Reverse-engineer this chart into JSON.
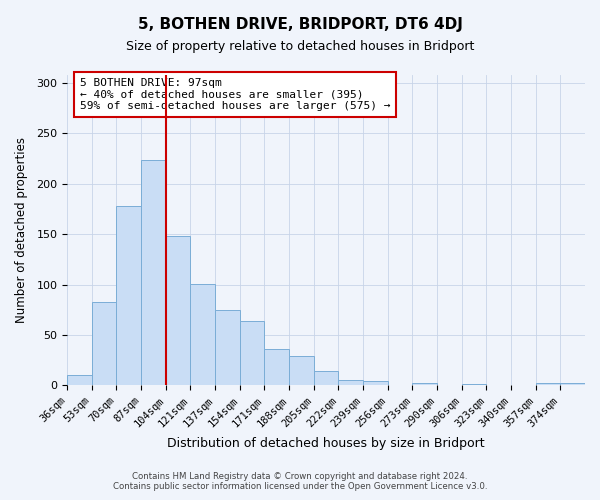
{
  "title": "5, BOTHEN DRIVE, BRIDPORT, DT6 4DJ",
  "subtitle": "Size of property relative to detached houses in Bridport",
  "xlabel": "Distribution of detached houses by size in Bridport",
  "ylabel": "Number of detached properties",
  "bar_labels": [
    "36sqm",
    "53sqm",
    "70sqm",
    "87sqm",
    "104sqm",
    "121sqm",
    "137sqm",
    "154sqm",
    "171sqm",
    "188sqm",
    "205sqm",
    "222sqm",
    "239sqm",
    "256sqm",
    "273sqm",
    "290sqm",
    "306sqm",
    "323sqm",
    "340sqm",
    "357sqm",
    "374sqm"
  ],
  "bar_values": [
    10,
    83,
    178,
    224,
    148,
    101,
    75,
    64,
    36,
    29,
    14,
    5,
    4,
    0,
    2,
    0,
    1,
    0,
    0,
    2,
    2
  ],
  "bar_color": "#c9ddf5",
  "bar_edge_color": "#7aadd6",
  "vline_x": 4.0,
  "vline_color": "#cc0000",
  "annotation_title": "5 BOTHEN DRIVE: 97sqm",
  "annotation_line1": "← 40% of detached houses are smaller (395)",
  "annotation_line2": "59% of semi-detached houses are larger (575) →",
  "annotation_box_edge_color": "#cc0000",
  "ylim": [
    0,
    308
  ],
  "yticks": [
    0,
    50,
    100,
    150,
    200,
    250,
    300
  ],
  "footer1": "Contains HM Land Registry data © Crown copyright and database right 2024.",
  "footer2": "Contains public sector information licensed under the Open Government Licence v3.0.",
  "bg_color": "#f0f4fb",
  "plot_bg_color": "#f0f4fb",
  "title_fontsize": 11,
  "subtitle_fontsize": 9,
  "xlabel_fontsize": 9,
  "ylabel_fontsize": 8.5,
  "tick_fontsize": 7.5
}
